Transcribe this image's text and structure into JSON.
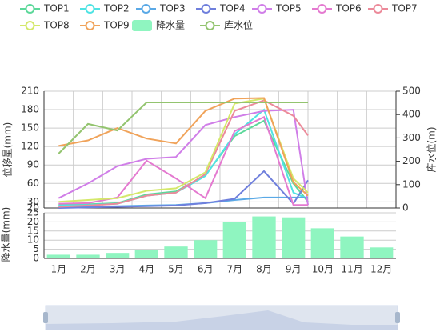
{
  "chart_data": [
    {
      "type": "line",
      "ylabel": "位移量(mm)",
      "y2label": "库水位(m)",
      "x": [
        1,
        2,
        3,
        4,
        5,
        6,
        7,
        8,
        9,
        9.5
      ],
      "xlim": [
        0.5,
        12.5
      ],
      "xticks": [
        0.5,
        1.5,
        2.5,
        3.5,
        4.5,
        5.5,
        6.5,
        7.5,
        8.5,
        9.5,
        10.5,
        11.5,
        12.5
      ],
      "ylim": [
        20,
        210
      ],
      "yticks": [
        20,
        30,
        60,
        90,
        120,
        150,
        180,
        210
      ],
      "y2lim": [
        0,
        500
      ],
      "y2ticks": [
        0,
        100,
        200,
        300,
        400,
        500
      ],
      "grid": true,
      "series": [
        {
          "name": "TOP1",
          "color": "#5cd89a",
          "values": [
            25,
            26,
            28,
            42,
            47,
            73,
            137,
            162,
            60,
            30
          ]
        },
        {
          "name": "TOP2",
          "color": "#4fe3e3",
          "values": [
            24,
            25,
            27,
            40,
            45,
            72,
            140,
            180,
            45,
            35
          ]
        },
        {
          "name": "TOP3",
          "color": "#5aa9e6",
          "values": [
            22,
            22,
            23,
            24,
            25,
            28,
            33,
            37,
            37,
            37
          ]
        },
        {
          "name": "TOP4",
          "color": "#6f7fdc",
          "values": [
            20,
            21,
            22,
            23,
            24,
            28,
            35,
            80,
            27,
            65
          ]
        },
        {
          "name": "TOP5",
          "color": "#d07ee8",
          "values": [
            36,
            60,
            88,
            100,
            103,
            155,
            168,
            178,
            180,
            25
          ]
        },
        {
          "name": "TOP6",
          "color": "#e47ad0",
          "values": [
            27,
            28,
            37,
            97,
            68,
            36,
            145,
            168,
            25,
            25
          ]
        },
        {
          "name": "TOP7",
          "color": "#ec8a9a",
          "values": [
            22,
            24,
            27,
            40,
            45,
            75,
            178,
            195,
            170,
            138
          ]
        },
        {
          "name": "TOP8",
          "color": "#d4e86a",
          "values": [
            30,
            33,
            36,
            48,
            52,
            78,
            190,
            198,
            68,
            45
          ]
        },
        {
          "name": "TOP9",
          "color": "#f0a35a",
          "values": [
            121,
            130,
            150,
            133,
            125,
            178,
            198,
            199,
            62,
            40
          ]
        },
        {
          "name": "库水位",
          "color": "#93c46f",
          "axis": "y2",
          "values": [
            233,
            360,
            332,
            452,
            452,
            452,
            452,
            452,
            452,
            452
          ]
        }
      ]
    },
    {
      "type": "bar",
      "ylabel": "降水量(mm)",
      "categories": [
        "1月",
        "2月",
        "3月",
        "4月",
        "5月",
        "6月",
        "7月",
        "8月",
        "9月",
        "10月",
        "11月",
        "12月"
      ],
      "ylim": [
        0,
        25
      ],
      "yticks": [
        0,
        5,
        10,
        15,
        20,
        25
      ],
      "grid": true,
      "series": [
        {
          "name": "降水量",
          "color": "#8ff5c0",
          "values": [
            2,
            2,
            3,
            4.5,
            6.5,
            10,
            20,
            23,
            22.5,
            16.5,
            12,
            6
          ]
        }
      ]
    }
  ]
}
